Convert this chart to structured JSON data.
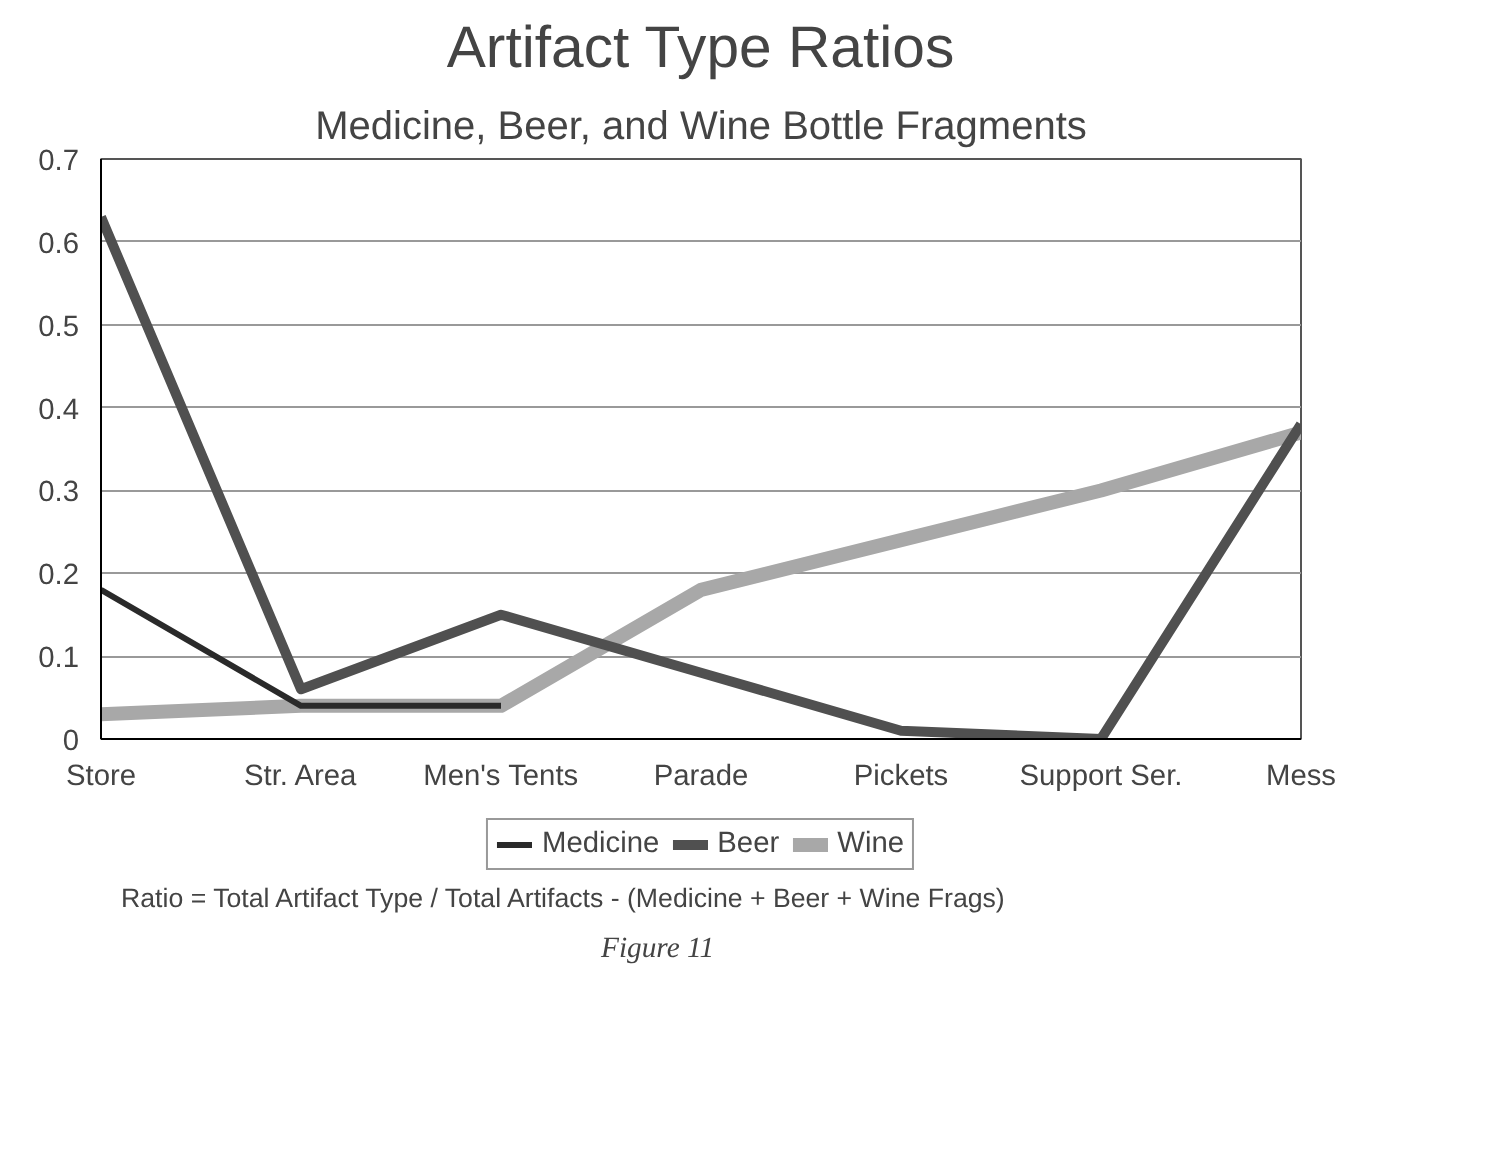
{
  "chart_data": {
    "type": "line",
    "title": "Artifact Type Ratios",
    "subtitle": "Medicine, Beer, and Wine Bottle Fragments",
    "categories": [
      "Store",
      "Str. Area",
      "Men's Tents",
      "Parade",
      "Pickets",
      "Support Ser.",
      "Mess"
    ],
    "series": [
      {
        "name": "Medicine",
        "color": "#2a2a2a",
        "values": [
          0.18,
          0.04,
          0.04,
          null,
          null,
          null,
          null
        ]
      },
      {
        "name": "Beer",
        "color": "#505050",
        "values": [
          0.63,
          0.06,
          0.15,
          0.08,
          0.01,
          0.0,
          0.38
        ]
      },
      {
        "name": "Wine",
        "color": "#a8a8a8",
        "values": [
          0.03,
          0.04,
          0.04,
          0.18,
          0.24,
          0.3,
          0.37
        ]
      }
    ],
    "ylim": [
      0,
      0.7
    ],
    "yticks": [
      0,
      0.1,
      0.2,
      0.3,
      0.4,
      0.5,
      0.6,
      0.7
    ],
    "grid": "y",
    "legend": "bottom",
    "marker": "none",
    "line_style": "solid",
    "annotations": [
      "Ratio = Total Artifact Type / Total Artifacts - (Medicine + Beer + Wine Frags)",
      "Figure 11"
    ]
  }
}
